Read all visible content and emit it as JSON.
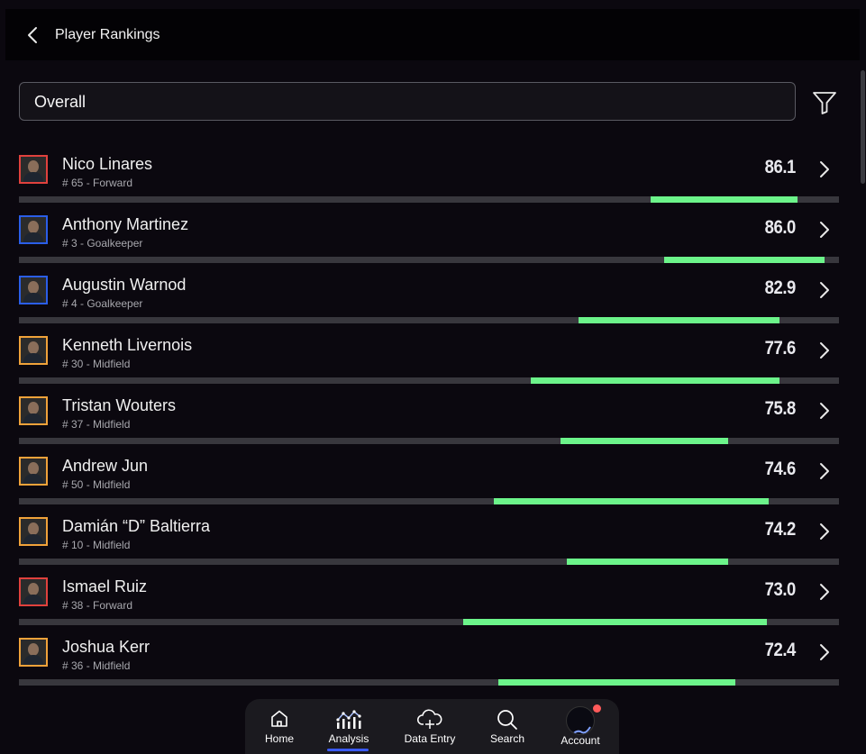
{
  "header": {
    "title": "Player Rankings"
  },
  "filter": {
    "selected": "Overall"
  },
  "players": [
    {
      "name": "Nico Linares",
      "sub": "# 65 - Forward",
      "score": "86.1",
      "border": "#e0413d",
      "bar_start": 0.77,
      "bar_end": 0.95
    },
    {
      "name": "Anthony Martinez",
      "sub": "# 3 - Goalkeeper",
      "score": "86.0",
      "border": "#2b5ee8",
      "bar_start": 0.787,
      "bar_end": 0.982
    },
    {
      "name": "Augustin Warnod",
      "sub": "# 4 - Goalkeeper",
      "score": "82.9",
      "border": "#2b5ee8",
      "bar_start": 0.682,
      "bar_end": 0.928
    },
    {
      "name": "Kenneth Livernois",
      "sub": "# 30 - Midfield",
      "score": "77.6",
      "border": "#f0a23a",
      "bar_start": 0.624,
      "bar_end": 0.928
    },
    {
      "name": "Tristan Wouters",
      "sub": "# 37 - Midfield",
      "score": "75.8",
      "border": "#f0a23a",
      "bar_start": 0.66,
      "bar_end": 0.865
    },
    {
      "name": "Andrew Jun",
      "sub": "# 50 - Midfield",
      "score": "74.6",
      "border": "#f0a23a",
      "bar_start": 0.579,
      "bar_end": 0.914
    },
    {
      "name": "Damián “D” Baltierra",
      "sub": "# 10 - Midfield",
      "score": "74.2",
      "border": "#f0a23a",
      "bar_start": 0.668,
      "bar_end": 0.865
    },
    {
      "name": "Ismael Ruiz",
      "sub": "# 38 - Forward",
      "score": "73.0",
      "border": "#e0413d",
      "bar_start": 0.542,
      "bar_end": 0.912
    },
    {
      "name": "Joshua Kerr",
      "sub": "# 36 - Midfield",
      "score": "72.4",
      "border": "#f0a23a",
      "bar_start": 0.585,
      "bar_end": 0.874
    }
  ],
  "colors": {
    "bar_fill": "#6cf48a",
    "bar_track": "#38373d",
    "nav_active": "#3b5bff",
    "notification": "#ff5a5a"
  },
  "nav": [
    {
      "label": "Home",
      "icon": "home-icon"
    },
    {
      "label": "Analysis",
      "icon": "analysis-icon",
      "active": true
    },
    {
      "label": "Data Entry",
      "icon": "cloud-add-icon"
    },
    {
      "label": "Search",
      "icon": "search-icon"
    },
    {
      "label": "Account",
      "icon": "account-avatar"
    }
  ]
}
